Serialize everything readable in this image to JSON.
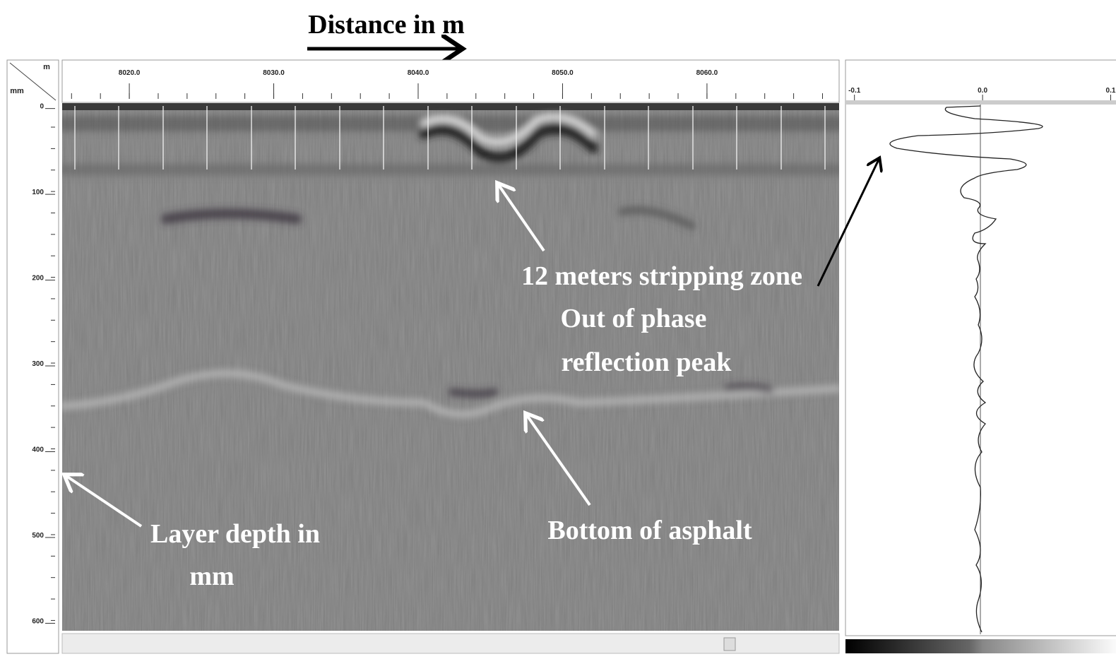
{
  "header": {
    "title": "Distance in m"
  },
  "radargram": {
    "x_unit": "m",
    "y_unit": "mm",
    "xlim": [
      8015.35,
      8069.15
    ],
    "xticks": [
      {
        "value": 8020,
        "label": "8020.0"
      },
      {
        "value": 8030,
        "label": "8030.0"
      },
      {
        "value": 8040,
        "label": "8040.0"
      },
      {
        "value": 8050,
        "label": "8050.0"
      },
      {
        "value": 8060,
        "label": "8060.0"
      }
    ],
    "ylim": [
      -3,
      612
    ],
    "yticks": [
      0,
      100,
      200,
      300,
      400,
      500,
      600
    ]
  },
  "trace": {
    "xlim": [
      -0.107,
      0.108
    ],
    "xticks": [
      {
        "value": -0.1,
        "label": "-0.1"
      },
      {
        "value": 0,
        "label": "0.0"
      },
      {
        "value": 0.1,
        "label": "0.1"
      }
    ]
  },
  "annotations": [
    "12 meters stripping zone",
    "Out of phase",
    "reflection peak",
    "Bottom of asphalt",
    "Layer depth in",
    "mm"
  ]
}
